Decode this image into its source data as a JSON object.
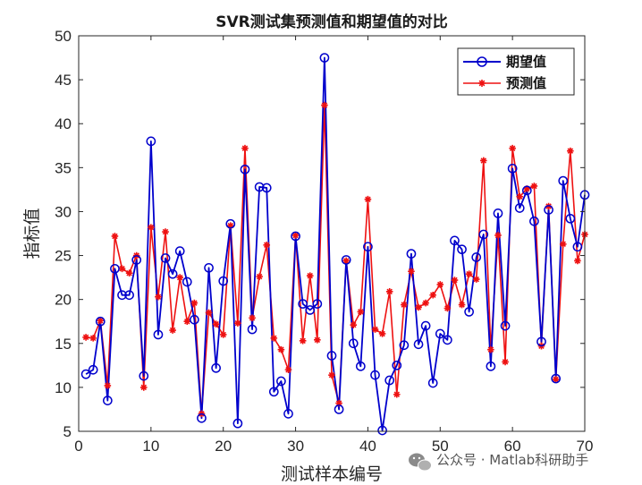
{
  "chart_data": {
    "type": "line",
    "title": "SVR测试集预测值和期望值的对比",
    "xlabel": "测试样本编号",
    "ylabel": "指标值",
    "xlim": [
      0,
      70
    ],
    "ylim": [
      5,
      50
    ],
    "xticks": [
      "0",
      "10",
      "20",
      "30",
      "40",
      "50",
      "60",
      "70"
    ],
    "yticks": [
      "5",
      "10",
      "15",
      "20",
      "25",
      "30",
      "35",
      "40",
      "45",
      "50"
    ],
    "grid": false,
    "legend_position": "top-right",
    "x": [
      1,
      2,
      3,
      4,
      5,
      6,
      7,
      8,
      9,
      10,
      11,
      12,
      13,
      14,
      15,
      16,
      17,
      18,
      19,
      20,
      21,
      22,
      23,
      24,
      25,
      26,
      27,
      28,
      29,
      30,
      31,
      32,
      33,
      34,
      35,
      36,
      37,
      38,
      39,
      40,
      41,
      42,
      43,
      44,
      45,
      46,
      47,
      48,
      49,
      50,
      51,
      52,
      53,
      54,
      55,
      56,
      57,
      58,
      59,
      60,
      61,
      62,
      63,
      64,
      65,
      66,
      67,
      68,
      69,
      70
    ],
    "series": [
      {
        "name": "期望值",
        "color": "#0000cc",
        "marker": "circle",
        "values": [
          11.5,
          12.0,
          17.5,
          8.5,
          23.5,
          20.5,
          20.5,
          24.5,
          11.3,
          38.0,
          16.0,
          24.7,
          22.9,
          25.5,
          22.0,
          17.7,
          6.5,
          23.6,
          12.2,
          22.1,
          28.6,
          5.9,
          34.8,
          16.6,
          32.8,
          32.7,
          9.5,
          10.7,
          7.0,
          27.2,
          19.5,
          18.8,
          19.5,
          47.5,
          13.6,
          7.5,
          24.5,
          15.0,
          12.4,
          26.0,
          11.4,
          5.1,
          10.8,
          12.5,
          14.8,
          25.2,
          14.9,
          17.0,
          10.5,
          16.1,
          15.4,
          26.7,
          25.7,
          18.6,
          24.8,
          27.4,
          12.4,
          29.8,
          17.0,
          34.9,
          30.4,
          32.4,
          28.9,
          15.2,
          30.2,
          11.0,
          33.5,
          29.2,
          26.0,
          31.9
        ]
      },
      {
        "name": "预测值",
        "color": "#ee1111",
        "marker": "star",
        "values": [
          15.7,
          15.6,
          17.6,
          10.2,
          27.2,
          23.5,
          23.0,
          25.0,
          10.0,
          28.2,
          20.3,
          27.7,
          16.5,
          22.5,
          17.5,
          19.6,
          7.0,
          18.5,
          17.2,
          16.0,
          28.4,
          17.3,
          37.2,
          17.9,
          22.6,
          26.2,
          15.6,
          14.3,
          12.0,
          27.3,
          15.3,
          22.7,
          15.4,
          42.1,
          11.4,
          8.2,
          24.4,
          17.1,
          18.6,
          31.4,
          16.6,
          16.1,
          20.9,
          9.2,
          19.4,
          23.2,
          19.1,
          19.6,
          20.5,
          21.7,
          19.0,
          22.2,
          19.4,
          22.9,
          22.3,
          35.8,
          14.3,
          27.3,
          12.9,
          37.2,
          31.7,
          32.6,
          32.9,
          14.7,
          30.6,
          10.9,
          26.3,
          36.9,
          24.4,
          27.4
        ]
      }
    ]
  },
  "watermark": {
    "icon": "wechat-icon",
    "text": "公众号 · Matlab科研助手"
  }
}
